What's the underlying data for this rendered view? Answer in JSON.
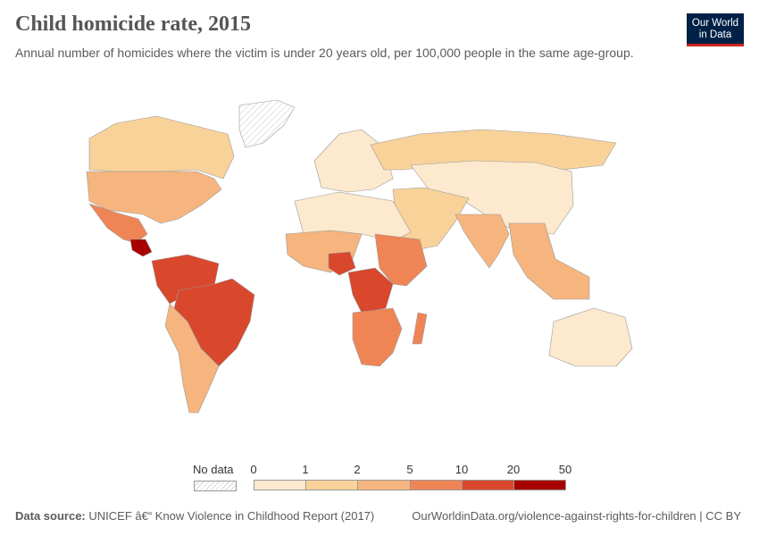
{
  "title": "Child homicide rate, 2015",
  "subtitle": "Annual number of homicides where the victim is under 20 years old, per 100,000 people in the same age-group.",
  "logo": {
    "line1": "Our World",
    "line2": "in Data"
  },
  "legend": {
    "no_data_label": "No data",
    "ticks": [
      "0",
      "1",
      "2",
      "5",
      "10",
      "20",
      "50"
    ],
    "bin_colors": [
      "#fde9cd",
      "#f9d29a",
      "#f6b57e",
      "#ef8555",
      "#d9472d",
      "#a80000"
    ],
    "no_data_color": "#e6e6e6"
  },
  "footer": {
    "source_label": "Data source:",
    "source_text": "UNICEF â€“ Know Violence in Childhood Report (2017)",
    "right_text": "OurWorldinData.org/violence-against-rights-for-children | CC BY"
  },
  "regions": [
    {
      "name": "Canada",
      "bin": 1
    },
    {
      "name": "United States",
      "bin": 2
    },
    {
      "name": "Mexico",
      "bin": 3
    },
    {
      "name": "Central America",
      "bin": 5
    },
    {
      "name": "Northern South America",
      "bin": 4
    },
    {
      "name": "Brazil",
      "bin": 4
    },
    {
      "name": "Southern South America",
      "bin": 2
    },
    {
      "name": "Greenland",
      "bin": -1
    },
    {
      "name": "Europe",
      "bin": 0
    },
    {
      "name": "Russia",
      "bin": 1
    },
    {
      "name": "China and Central Asia",
      "bin": 0
    },
    {
      "name": "Middle East",
      "bin": 1
    },
    {
      "name": "India",
      "bin": 2
    },
    {
      "name": "Southeast Asia",
      "bin": 2
    },
    {
      "name": "Northern Africa",
      "bin": 0
    },
    {
      "name": "West Africa",
      "bin": 2
    },
    {
      "name": "Nigeria",
      "bin": 4
    },
    {
      "name": "Central Africa",
      "bin": 4
    },
    {
      "name": "East Africa",
      "bin": 3
    },
    {
      "name": "Southern Africa",
      "bin": 3
    },
    {
      "name": "Madagascar",
      "bin": 3
    },
    {
      "name": "Australia",
      "bin": 0
    }
  ]
}
